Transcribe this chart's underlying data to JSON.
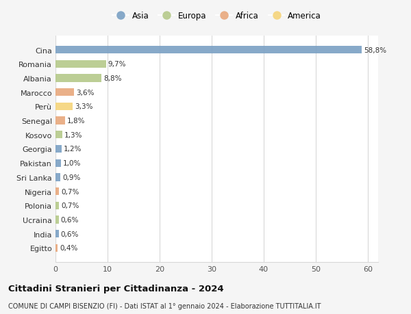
{
  "countries": [
    "Cina",
    "Romania",
    "Albania",
    "Marocco",
    "Perù",
    "Senegal",
    "Kosovo",
    "Georgia",
    "Pakistan",
    "Sri Lanka",
    "Nigeria",
    "Polonia",
    "Ucraina",
    "India",
    "Egitto"
  ],
  "values": [
    58.8,
    9.7,
    8.8,
    3.6,
    3.3,
    1.8,
    1.3,
    1.2,
    1.0,
    0.9,
    0.7,
    0.7,
    0.6,
    0.6,
    0.4
  ],
  "labels": [
    "58,8%",
    "9,7%",
    "8,8%",
    "3,6%",
    "3,3%",
    "1,8%",
    "1,3%",
    "1,2%",
    "1,0%",
    "0,9%",
    "0,7%",
    "0,7%",
    "0,6%",
    "0,6%",
    "0,4%"
  ],
  "continents": [
    "Asia",
    "Europa",
    "Europa",
    "Africa",
    "America",
    "Africa",
    "Europa",
    "Asia",
    "Asia",
    "Asia",
    "Africa",
    "Europa",
    "Europa",
    "Asia",
    "Africa"
  ],
  "continent_colors": {
    "Asia": "#7aA0C4",
    "Europa": "#b5c98a",
    "Africa": "#e8a87c",
    "America": "#f5d47a"
  },
  "legend_order": [
    "Asia",
    "Europa",
    "Africa",
    "America"
  ],
  "title": "Cittadini Stranieri per Cittadinanza - 2024",
  "subtitle": "COMUNE DI CAMPI BISENZIO (FI) - Dati ISTAT al 1° gennaio 2024 - Elaborazione TUTTITALIA.IT",
  "xlim": [
    0,
    62
  ],
  "xticks": [
    0,
    10,
    20,
    30,
    40,
    50,
    60
  ],
  "background_color": "#f5f5f5",
  "bar_background": "#ffffff",
  "grid_color": "#d8d8d8"
}
